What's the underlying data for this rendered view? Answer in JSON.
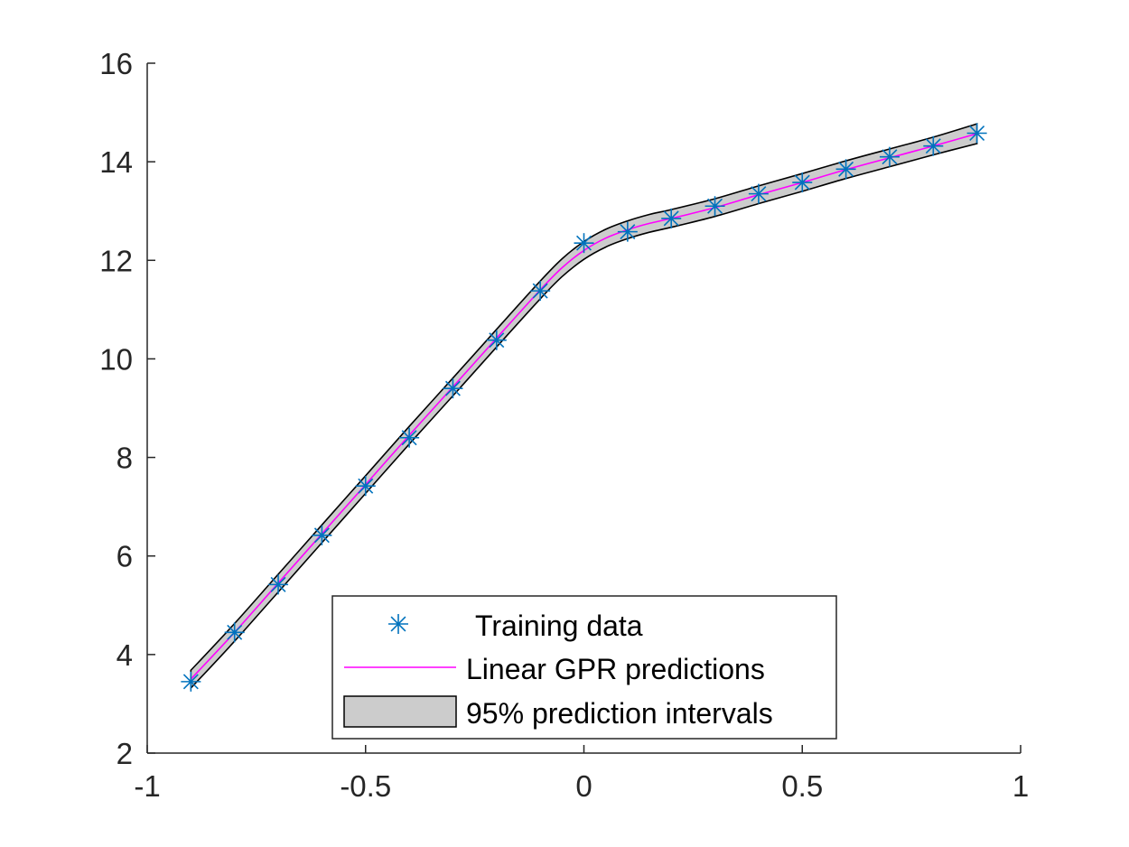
{
  "chart_data": {
    "type": "line",
    "title": "",
    "xlabel": "",
    "ylabel": "",
    "xlim": [
      -1,
      1
    ],
    "ylim": [
      2,
      16
    ],
    "xticks": [
      -1,
      -0.5,
      0,
      0.5,
      1
    ],
    "xtick_labels": [
      "-1",
      "-0.5",
      "0",
      "0.5",
      "1"
    ],
    "yticks": [
      2,
      4,
      6,
      8,
      10,
      12,
      14,
      16
    ],
    "ytick_labels": [
      "2",
      "4",
      "6",
      "8",
      "10",
      "12",
      "14",
      "16"
    ],
    "grid": false,
    "legend_position": "bottom-center",
    "series": [
      {
        "name": "Training data",
        "kind": "scatter",
        "marker": "asterisk",
        "color": "#0072BD",
        "x": [
          -0.9,
          -0.8,
          -0.7,
          -0.6,
          -0.5,
          -0.4,
          -0.3,
          -0.2,
          -0.1,
          0,
          0.1,
          0.2,
          0.3,
          0.4,
          0.5,
          0.6,
          0.7,
          0.8,
          0.9
        ],
        "y": [
          3.45,
          4.45,
          5.42,
          6.42,
          7.42,
          8.4,
          9.4,
          10.38,
          11.38,
          12.35,
          12.58,
          12.85,
          13.1,
          13.35,
          13.58,
          13.85,
          14.1,
          14.32,
          14.58
        ]
      },
      {
        "name": "Linear GPR predictions",
        "kind": "line",
        "color": "#FF00FF",
        "x": [
          -0.9,
          -0.8,
          -0.7,
          -0.6,
          -0.5,
          -0.4,
          -0.3,
          -0.2,
          -0.1,
          -0.05,
          0,
          0.05,
          0.1,
          0.15,
          0.2,
          0.3,
          0.4,
          0.5,
          0.6,
          0.7,
          0.8,
          0.9
        ],
        "y": [
          3.5,
          4.45,
          5.45,
          6.45,
          7.45,
          8.45,
          9.43,
          10.42,
          11.4,
          11.85,
          12.2,
          12.45,
          12.62,
          12.75,
          12.85,
          13.07,
          13.33,
          13.58,
          13.84,
          14.08,
          14.32,
          14.57
        ]
      },
      {
        "name": "95% prediction intervals",
        "kind": "band",
        "fill": "#cccccc",
        "edge": "#000000",
        "x": [
          -0.9,
          -0.8,
          -0.7,
          -0.6,
          -0.5,
          -0.4,
          -0.3,
          -0.2,
          -0.1,
          -0.05,
          0,
          0.05,
          0.1,
          0.15,
          0.2,
          0.3,
          0.4,
          0.5,
          0.6,
          0.7,
          0.8,
          0.9
        ],
        "upper": [
          3.68,
          4.63,
          5.63,
          6.63,
          7.63,
          8.63,
          9.61,
          10.6,
          11.58,
          12.03,
          12.38,
          12.63,
          12.8,
          12.93,
          13.03,
          13.25,
          13.51,
          13.76,
          14.02,
          14.26,
          14.5,
          14.77
        ],
        "lower": [
          3.32,
          4.27,
          5.27,
          6.27,
          7.27,
          8.27,
          9.25,
          10.24,
          11.22,
          11.67,
          12.02,
          12.27,
          12.44,
          12.57,
          12.67,
          12.89,
          13.15,
          13.4,
          13.66,
          13.9,
          14.14,
          14.37
        ]
      }
    ]
  }
}
